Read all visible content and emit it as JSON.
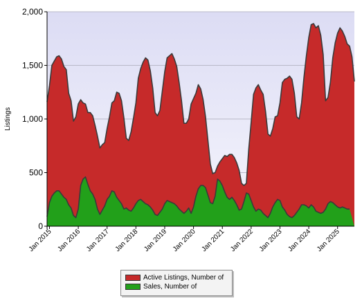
{
  "chart_data": {
    "type": "area",
    "ylabel": "Listings",
    "ylim": [
      0,
      2000
    ],
    "y_ticks": [
      0,
      500,
      1000,
      1500,
      2000
    ],
    "y_tick_labels": [
      "0",
      "500",
      "1,000",
      "1,500",
      "2,000"
    ],
    "x_tick_labels": [
      "Jan 2015",
      "Jan 2016",
      "Jan 2017",
      "Jan 2018",
      "Jan 2019",
      "Jan 2020",
      "Jan 2021",
      "Jan 2022",
      "Jan 2023",
      "Jan 2024",
      "Jan 2025"
    ],
    "x_start": "Dec 2014",
    "x_end": "Dec 2025",
    "grid": "horizontal",
    "legend_position": "bottom",
    "series": [
      {
        "name": "Active Listings, Number of",
        "color": "#c62a2a",
        "values": [
          1160,
          1310,
          1500,
          1540,
          1580,
          1590,
          1560,
          1490,
          1460,
          1240,
          1170,
          980,
          1020,
          1140,
          1180,
          1150,
          1140,
          1060,
          1060,
          1030,
          940,
          840,
          730,
          760,
          780,
          910,
          1020,
          1150,
          1170,
          1250,
          1240,
          1170,
          1010,
          820,
          800,
          880,
          1010,
          1150,
          1380,
          1470,
          1530,
          1570,
          1550,
          1450,
          1290,
          1060,
          1030,
          1080,
          1260,
          1440,
          1570,
          1590,
          1610,
          1560,
          1490,
          1340,
          1170,
          960,
          960,
          1000,
          1140,
          1190,
          1240,
          1320,
          1280,
          1180,
          1020,
          800,
          580,
          490,
          500,
          560,
          600,
          630,
          660,
          650,
          670,
          670,
          640,
          590,
          520,
          400,
          380,
          400,
          720,
          970,
          1230,
          1290,
          1320,
          1270,
          1230,
          1070,
          860,
          840,
          910,
          1020,
          1030,
          1150,
          1340,
          1370,
          1380,
          1400,
          1370,
          1240,
          1020,
          1000,
          1150,
          1390,
          1590,
          1760,
          1880,
          1890,
          1850,
          1870,
          1780,
          1600,
          1170,
          1200,
          1340,
          1570,
          1710,
          1800,
          1850,
          1820,
          1770,
          1700,
          1680,
          1580,
          1350
        ]
      },
      {
        "name": "Sales, Number of",
        "color": "#22a01a",
        "values": [
          90,
          220,
          280,
          310,
          330,
          330,
          300,
          270,
          250,
          200,
          170,
          100,
          80,
          160,
          380,
          440,
          460,
          390,
          330,
          300,
          250,
          160,
          110,
          150,
          190,
          250,
          280,
          330,
          320,
          270,
          240,
          210,
          160,
          170,
          150,
          140,
          170,
          210,
          240,
          250,
          230,
          210,
          200,
          180,
          150,
          110,
          100,
          130,
          160,
          210,
          240,
          230,
          220,
          210,
          190,
          160,
          140,
          120,
          140,
          170,
          120,
          180,
          280,
          350,
          380,
          380,
          360,
          290,
          220,
          210,
          280,
          440,
          420,
          380,
          320,
          270,
          250,
          270,
          240,
          200,
          150,
          160,
          230,
          310,
          300,
          240,
          180,
          140,
          160,
          150,
          120,
          100,
          80,
          120,
          180,
          220,
          250,
          240,
          180,
          150,
          110,
          90,
          80,
          100,
          130,
          160,
          200,
          200,
          190,
          170,
          200,
          180,
          140,
          130,
          120,
          130,
          160,
          210,
          230,
          220,
          200,
          180,
          170,
          180,
          170,
          160,
          160
        ]
      }
    ]
  },
  "legend": {
    "items": [
      {
        "label": "Active Listings, Number of",
        "color": "#c62a2a"
      },
      {
        "label": "Sales, Number of",
        "color": "#22a01a"
      }
    ]
  }
}
